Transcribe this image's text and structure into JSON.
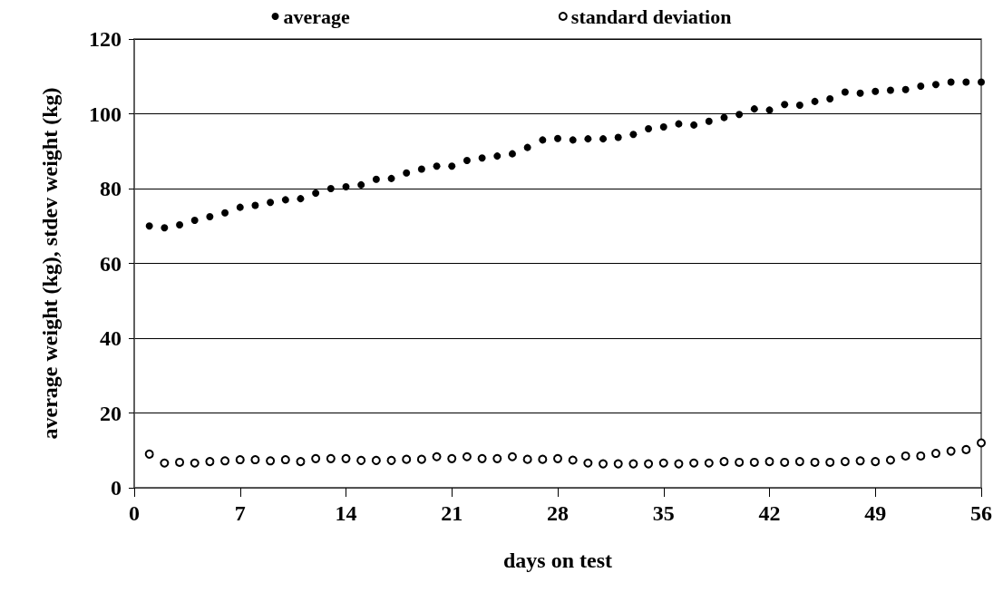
{
  "chart_data": {
    "type": "scatter",
    "xlabel": "days on test",
    "ylabel": "average weight (kg), stdev weight (kg)",
    "x": [
      1,
      2,
      3,
      4,
      5,
      6,
      7,
      8,
      9,
      10,
      11,
      12,
      13,
      14,
      15,
      16,
      17,
      18,
      19,
      20,
      21,
      22,
      23,
      24,
      25,
      26,
      27,
      28,
      29,
      30,
      31,
      32,
      33,
      34,
      35,
      36,
      37,
      38,
      39,
      40,
      41,
      42,
      43,
      44,
      45,
      46,
      47,
      48,
      49,
      50,
      51,
      52,
      53,
      54,
      55,
      56
    ],
    "series": [
      {
        "name": "average",
        "color": "#000000",
        "marker": "circle",
        "values": [
          70,
          69.5,
          70.3,
          71.5,
          72.5,
          73.5,
          75,
          75.5,
          76.3,
          77,
          77.3,
          78.8,
          80,
          80.5,
          81,
          82.5,
          82.7,
          84.2,
          85.2,
          86,
          86,
          87.5,
          88.2,
          88.7,
          89.3,
          91,
          93,
          93.4,
          93,
          93.3,
          93.3,
          93.7,
          94.5,
          96,
          96.5,
          97.3,
          97,
          98,
          99,
          99.8,
          101.3,
          101,
          102.5,
          102.3,
          103.3,
          104,
          105.8,
          105.5,
          106,
          106.3,
          106.5,
          107.4,
          107.8,
          108.5,
          108.5,
          108.5
        ]
      },
      {
        "name": "standard deviation",
        "color": "#000000",
        "marker": "hollow circle",
        "values": [
          9,
          6.6,
          6.8,
          6.6,
          7,
          7.2,
          7.5,
          7.5,
          7.2,
          7.5,
          7,
          7.8,
          7.8,
          7.8,
          7.3,
          7.3,
          7.3,
          7.6,
          7.6,
          8.3,
          7.8,
          8.3,
          7.8,
          7.8,
          8.3,
          7.6,
          7.6,
          7.8,
          7.4,
          6.6,
          6.4,
          6.4,
          6.4,
          6.4,
          6.6,
          6.4,
          6.6,
          6.6,
          7,
          6.8,
          6.8,
          7,
          6.8,
          7,
          6.8,
          6.8,
          7,
          7.2,
          7,
          7.4,
          8.5,
          8.5,
          9.2,
          9.8,
          10.2,
          12
        ]
      }
    ],
    "xlim": [
      0,
      56
    ],
    "xticks": [
      0,
      7,
      14,
      21,
      28,
      35,
      42,
      49,
      56
    ],
    "ylim": [
      0,
      120
    ],
    "yticks": [
      0,
      20,
      40,
      60,
      80,
      100,
      120
    ],
    "grid": "y",
    "legend": "top"
  }
}
